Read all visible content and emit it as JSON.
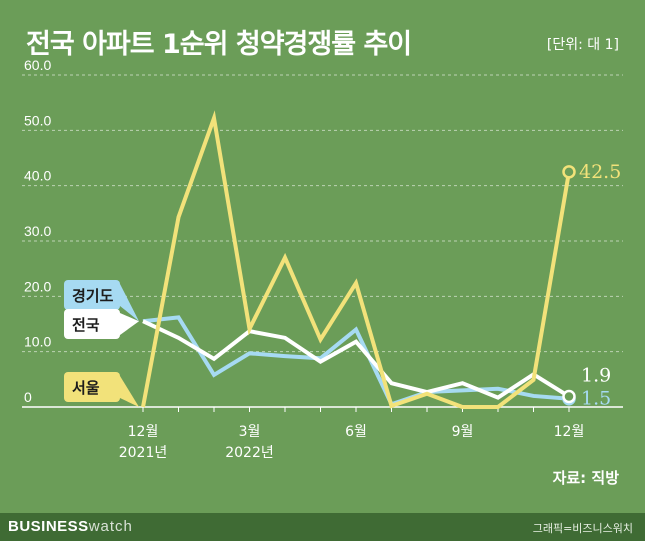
{
  "title": "전국 아파트 1순위 청약경쟁률 추이",
  "unit_label": "[단위: 대 1]",
  "source": "자료: 직방",
  "footer": {
    "brand_bold": "BUSINESS",
    "brand_light": "watch",
    "credit": "그래픽=비즈니스워치"
  },
  "colors": {
    "background": "#6b9d58",
    "gyeonggi": "#a6daf2",
    "national": "#ffffff",
    "seoul": "#f2e27a",
    "footer": "#3f6b34"
  },
  "chart_data": {
    "type": "line",
    "ylim": [
      0,
      60
    ],
    "yticks": [
      "0",
      "10.0",
      "20.0",
      "30.0",
      "40.0",
      "50.0",
      "60.0"
    ],
    "ytick_values": [
      0,
      10,
      20,
      30,
      40,
      50,
      60
    ],
    "grid": true,
    "x": [
      "2021-12",
      "2022-01",
      "2022-02",
      "2022-03",
      "2022-04",
      "2022-05",
      "2022-06",
      "2022-07",
      "2022-08",
      "2022-09",
      "2022-10",
      "2022-11",
      "2022-12"
    ],
    "xtick_labels": [
      {
        "month": "12월",
        "year": "2021년",
        "index": 0
      },
      {
        "month": "3월",
        "year": "2022년",
        "index": 3
      },
      {
        "month": "6월",
        "year": "",
        "index": 6
      },
      {
        "month": "9월",
        "year": "",
        "index": 9
      },
      {
        "month": "12월",
        "year": "",
        "index": 12
      }
    ],
    "series": [
      {
        "name": "경기도",
        "key": "gyeonggi",
        "values": [
          15.5,
          16.2,
          5.8,
          9.7,
          9.2,
          8.8,
          14.0,
          0.5,
          2.7,
          3.0,
          3.3,
          2.0,
          1.5
        ],
        "end_label": "1.5"
      },
      {
        "name": "전국",
        "key": "national",
        "values": [
          15.5,
          12.5,
          8.7,
          13.7,
          12.5,
          8.2,
          11.8,
          4.3,
          2.7,
          4.3,
          1.7,
          5.9,
          1.9
        ],
        "end_label": "1.9"
      },
      {
        "name": "서울",
        "key": "seoul",
        "values": [
          0,
          34.3,
          52.2,
          14.1,
          27.0,
          12.2,
          22.4,
          0.2,
          2.4,
          0,
          0,
          4.9,
          42.5
        ],
        "end_label": "42.5"
      }
    ]
  }
}
